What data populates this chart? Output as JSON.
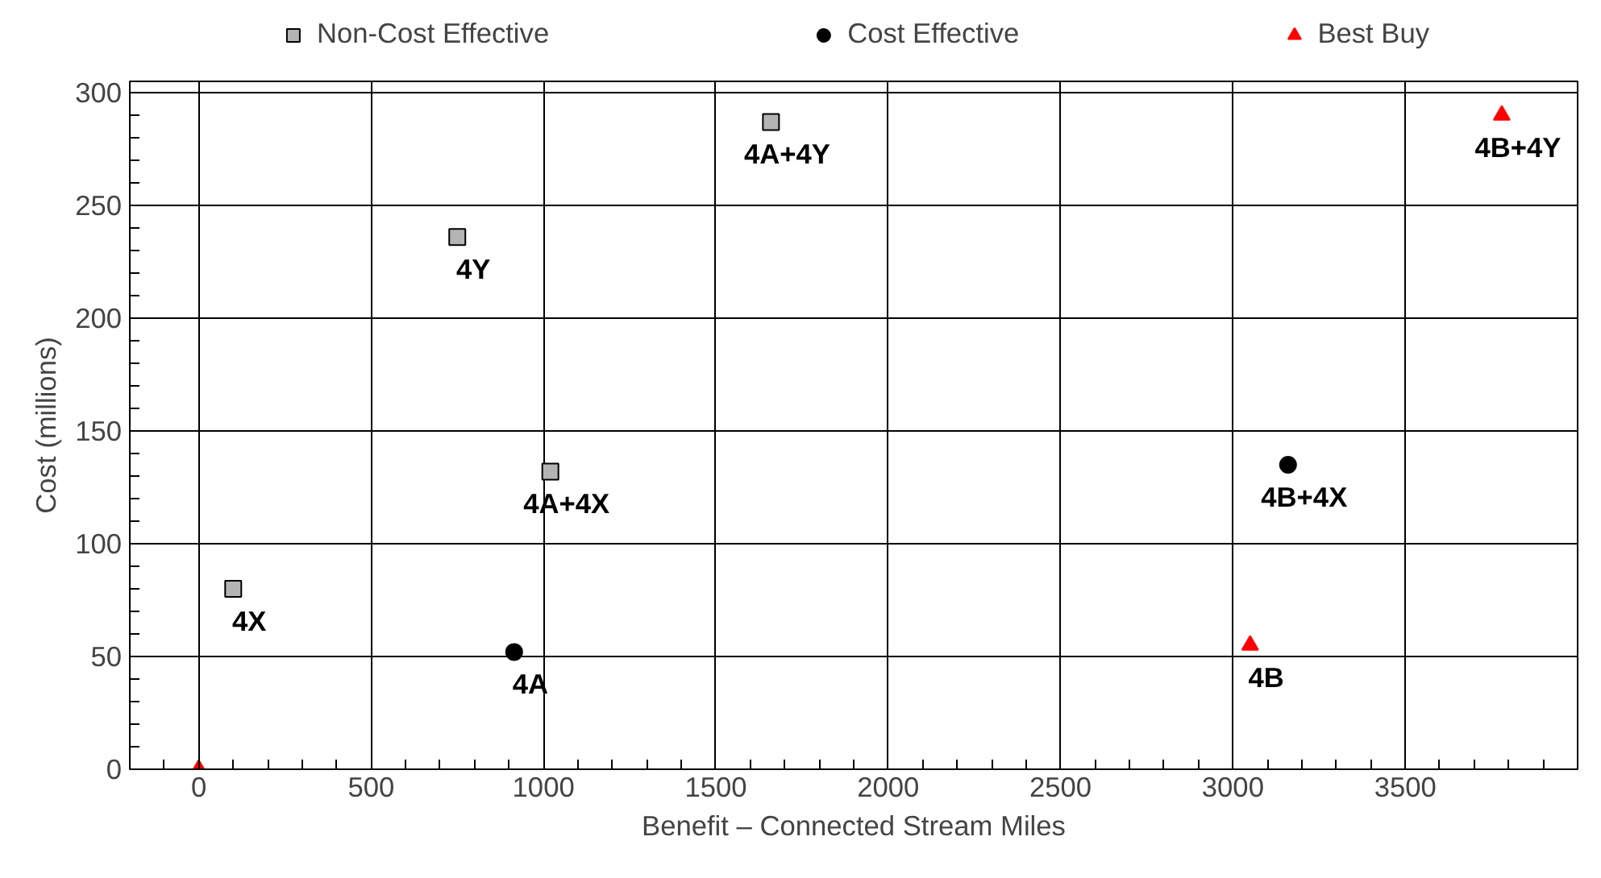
{
  "chart_data": {
    "type": "scatter",
    "xlabel": "Benefit – Connected Stream Miles",
    "ylabel": "Cost (millions)",
    "xlim": [
      -200,
      4000
    ],
    "xticks": [
      0,
      500,
      1000,
      1500,
      2000,
      2500,
      3000,
      3500
    ],
    "ylim": [
      0,
      305
    ],
    "yticks": [
      0,
      50,
      100,
      150,
      200,
      250,
      300
    ],
    "grid": true,
    "legend": "top",
    "series": [
      {
        "name": "Non-Cost Effective",
        "color": "#b4b4b4",
        "marker": "square",
        "x": [
          100,
          750,
          1020,
          1660
        ],
        "values": [
          80,
          236,
          132,
          287
        ]
      },
      {
        "name": "Cost Effective",
        "color": "#000000",
        "marker": "circle",
        "x": [
          915,
          3160
        ],
        "values": [
          52,
          135
        ]
      },
      {
        "name": "Best Buy",
        "color": "#ff0000",
        "marker": "triangle",
        "x": [
          0,
          3050,
          3780
        ],
        "values": [
          0,
          55,
          290
        ]
      }
    ],
    "annotations": [
      {
        "text": "4X",
        "x": 100,
        "y": 80
      },
      {
        "text": "4Y",
        "x": 750,
        "y": 236
      },
      {
        "text": "4A+4X",
        "x": 1020,
        "y": 132
      },
      {
        "text": "4A+4Y",
        "x": 1660,
        "y": 287
      },
      {
        "text": "4A",
        "x": 915,
        "y": 52
      },
      {
        "text": "4B+4X",
        "x": 3160,
        "y": 135
      },
      {
        "text": "4B",
        "x": 3050,
        "y": 55
      },
      {
        "text": "4B+4Y",
        "x": 3780,
        "y": 290
      }
    ]
  }
}
